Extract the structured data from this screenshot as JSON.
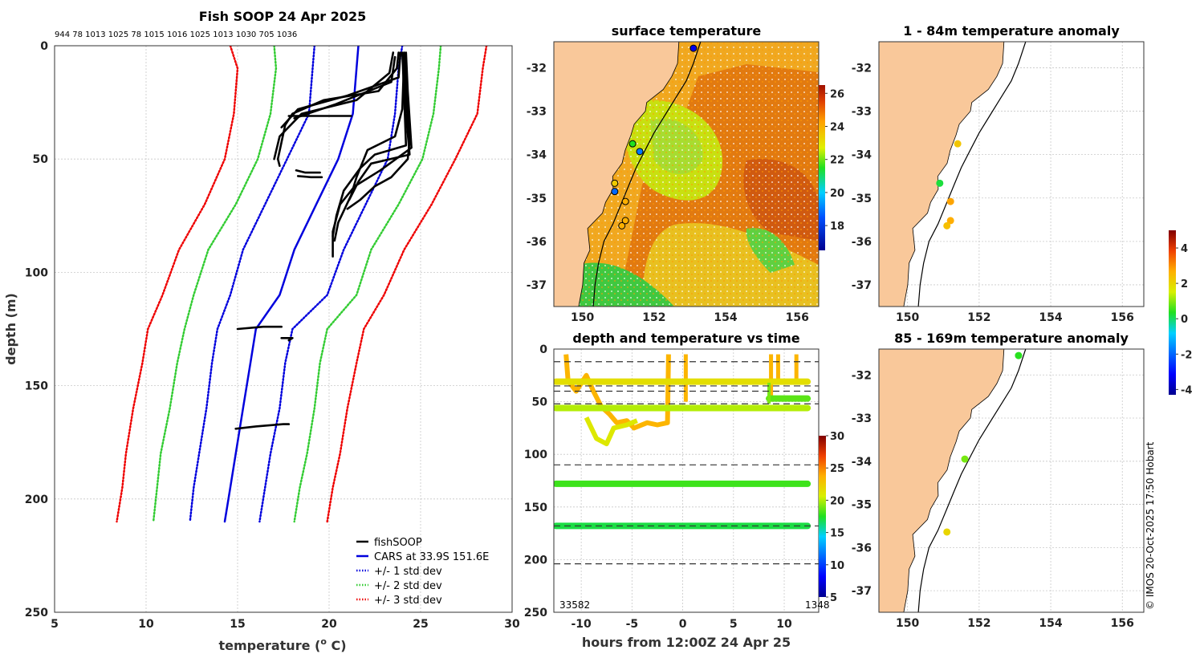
{
  "chart_data": [
    {
      "type": "line",
      "title": "Fish SOOP 24 Apr 2025",
      "subtitle": "944 78 1013 1025 78 1015 1016 1025 1013 1030 705 1036",
      "xlabel": "temperature (°C)",
      "xlabel_main": "temperature (",
      "xlabel_sup": "o",
      "xlabel_tail": " C)",
      "ylabel": "depth (m)",
      "xlim": [
        5,
        30
      ],
      "ylim": [
        250,
        0
      ],
      "xticks": [
        "5",
        "10",
        "15",
        "20",
        "25",
        "30"
      ],
      "yticks": [
        "0",
        "50",
        "100",
        "150",
        "200",
        "250"
      ],
      "legend": [
        "fishSOOP",
        "CARS at 33.9S 151.6E",
        "+/- 1 std dev",
        "+/- 2 std dev",
        "+/- 3 std dev"
      ],
      "legend_position": "bottom-right",
      "series": [
        {
          "name": "CARS at 33.9S 151.6E",
          "color": "#0000dd",
          "style": "solid",
          "points": [
            [
              21.6,
              0
            ],
            [
              21.5,
              10
            ],
            [
              21.3,
              30
            ],
            [
              20.5,
              50
            ],
            [
              19.3,
              70
            ],
            [
              18.1,
              90
            ],
            [
              17.3,
              110
            ],
            [
              16.0,
              125
            ],
            [
              15.7,
              140
            ],
            [
              15.3,
              160
            ],
            [
              14.9,
              180
            ],
            [
              14.6,
              195
            ],
            [
              14.3,
              210
            ]
          ]
        },
        {
          "name": "CARS -1 std",
          "color": "#0000dd",
          "style": "dotted",
          "points": [
            [
              19.2,
              0
            ],
            [
              19.1,
              10
            ],
            [
              18.9,
              30
            ],
            [
              17.7,
              50
            ],
            [
              16.5,
              70
            ],
            [
              15.3,
              90
            ],
            [
              14.6,
              110
            ],
            [
              13.9,
              125
            ],
            [
              13.6,
              140
            ],
            [
              13.3,
              160
            ],
            [
              12.9,
              180
            ],
            [
              12.6,
              195
            ],
            [
              12.4,
              210
            ]
          ]
        },
        {
          "name": "CARS +1 std",
          "color": "#0000dd",
          "style": "dotted",
          "points": [
            [
              24.0,
              0
            ],
            [
              23.8,
              10
            ],
            [
              23.6,
              30
            ],
            [
              23.2,
              50
            ],
            [
              22.0,
              70
            ],
            [
              20.8,
              90
            ],
            [
              19.9,
              110
            ],
            [
              18.0,
              125
            ],
            [
              17.6,
              140
            ],
            [
              17.3,
              160
            ],
            [
              16.8,
              180
            ],
            [
              16.5,
              195
            ],
            [
              16.2,
              210
            ]
          ]
        },
        {
          "name": "CARS -2 std",
          "color": "#33cc33",
          "style": "dotted",
          "points": [
            [
              17.0,
              0
            ],
            [
              17.1,
              10
            ],
            [
              16.8,
              30
            ],
            [
              16.1,
              50
            ],
            [
              14.9,
              70
            ],
            [
              13.4,
              90
            ],
            [
              12.6,
              110
            ],
            [
              12.1,
              125
            ],
            [
              11.7,
              140
            ],
            [
              11.3,
              160
            ],
            [
              10.8,
              180
            ],
            [
              10.6,
              195
            ],
            [
              10.4,
              210
            ]
          ]
        },
        {
          "name": "CARS +2 std",
          "color": "#33cc33",
          "style": "dotted",
          "points": [
            [
              26.1,
              0
            ],
            [
              26.0,
              10
            ],
            [
              25.7,
              30
            ],
            [
              25.1,
              50
            ],
            [
              23.8,
              70
            ],
            [
              22.3,
              90
            ],
            [
              21.5,
              110
            ],
            [
              19.9,
              125
            ],
            [
              19.5,
              140
            ],
            [
              19.2,
              160
            ],
            [
              18.8,
              180
            ],
            [
              18.4,
              195
            ],
            [
              18.1,
              210
            ]
          ]
        },
        {
          "name": "CARS -3 std",
          "color": "#ee0000",
          "style": "dotted",
          "points": [
            [
              14.6,
              0
            ],
            [
              15.0,
              10
            ],
            [
              14.8,
              30
            ],
            [
              14.3,
              50
            ],
            [
              13.2,
              70
            ],
            [
              11.8,
              90
            ],
            [
              10.9,
              110
            ],
            [
              10.1,
              125
            ],
            [
              9.8,
              140
            ],
            [
              9.3,
              160
            ],
            [
              8.9,
              180
            ],
            [
              8.7,
              195
            ],
            [
              8.4,
              210
            ]
          ]
        },
        {
          "name": "CARS +3 std",
          "color": "#ee0000",
          "style": "dotted",
          "points": [
            [
              28.6,
              0
            ],
            [
              28.4,
              10
            ],
            [
              28.1,
              30
            ],
            [
              26.9,
              50
            ],
            [
              25.6,
              70
            ],
            [
              24.1,
              90
            ],
            [
              23.0,
              110
            ],
            [
              21.9,
              125
            ],
            [
              21.5,
              140
            ],
            [
              21.0,
              160
            ],
            [
              20.6,
              180
            ],
            [
              20.2,
              195
            ],
            [
              19.9,
              210
            ]
          ]
        },
        {
          "name": "fishSOOP",
          "color": "#000000",
          "style": "solid",
          "profiles": [
            [
              [
                23.8,
                3
              ],
              [
                23.7,
                10
              ],
              [
                22.7,
                20
              ],
              [
                19.7,
                24
              ],
              [
                18.0,
                30
              ],
              [
                17.6,
                35
              ],
              [
                17.2,
                50
              ],
              [
                17.3,
                53
              ]
            ],
            [
              [
                23.5,
                3
              ],
              [
                23.3,
                12
              ],
              [
                21.5,
                24
              ],
              [
                18.5,
                30
              ],
              [
                17.3,
                40
              ],
              [
                17.0,
                50
              ]
            ],
            [
              [
                23.9,
                3
              ],
              [
                23.8,
                14
              ],
              [
                21.0,
                22
              ],
              [
                18.3,
                28
              ],
              [
                17.4,
                36
              ]
            ],
            [
              [
                23.6,
                5
              ],
              [
                23.4,
                16
              ],
              [
                20.3,
                26
              ],
              [
                18.1,
                32
              ]
            ],
            [
              [
                24.1,
                3
              ],
              [
                24.2,
                10
              ],
              [
                24.3,
                30
              ],
              [
                24.4,
                42
              ],
              [
                24.3,
                50
              ],
              [
                23.4,
                58
              ],
              [
                22.5,
                62
              ],
              [
                21.7,
                68
              ],
              [
                21.0,
                72
              ]
            ],
            [
              [
                24.2,
                3
              ],
              [
                24.3,
                20
              ],
              [
                24.5,
                45
              ],
              [
                22.8,
                55
              ],
              [
                21.4,
                62
              ],
              [
                20.6,
                70
              ],
              [
                20.2,
                82
              ],
              [
                20.2,
                93
              ]
            ],
            [
              [
                24.0,
                3
              ],
              [
                24.1,
                22
              ],
              [
                24.2,
                44
              ],
              [
                22.5,
                48
              ],
              [
                21.7,
                54
              ],
              [
                20.8,
                64
              ],
              [
                20.4,
                75
              ],
              [
                20.2,
                84
              ]
            ],
            [
              [
                24.1,
                5
              ],
              [
                24.0,
                28
              ],
              [
                23.6,
                40
              ],
              [
                22.1,
                46
              ],
              [
                21.5,
                58
              ],
              [
                21.2,
                66
              ],
              [
                20.5,
                78
              ],
              [
                20.3,
                86
              ]
            ],
            [
              [
                24.1,
                3
              ],
              [
                24.2,
                30
              ],
              [
                24.4,
                48
              ],
              [
                22.3,
                52
              ],
              [
                21.6,
                60
              ],
              [
                21.1,
                68
              ]
            ],
            [
              [
                17.8,
                31
              ],
              [
                18.4,
                31
              ],
              [
                19.1,
                31
              ],
              [
                20.2,
                31
              ],
              [
                21.2,
                31
              ]
            ],
            [
              [
                18.2,
                55
              ],
              [
                18.7,
                56
              ],
              [
                19.5,
                56
              ]
            ],
            [
              [
                18.3,
                57.5
              ],
              [
                19.0,
                58
              ],
              [
                19.6,
                58
              ]
            ],
            [
              [
                15.0,
                125
              ],
              [
                16.4,
                124
              ],
              [
                17.4,
                124
              ]
            ],
            [
              [
                17.4,
                129
              ],
              [
                18.0,
                129
              ],
              [
                17.8,
                130
              ]
            ],
            [
              [
                14.9,
                169
              ],
              [
                16.0,
                168
              ],
              [
                17.5,
                167
              ],
              [
                17.8,
                167
              ]
            ]
          ]
        }
      ]
    },
    {
      "type": "heatmap",
      "title": "surface temperature",
      "xticks": [
        "150",
        "152",
        "154",
        "156"
      ],
      "yticks": [
        "-32",
        "-33",
        "-34",
        "-35",
        "-36",
        "-37"
      ],
      "lon_range": [
        149.2,
        156.6
      ],
      "lat_range": [
        -37.5,
        -31.4
      ],
      "colorbar_ticks": [
        "26",
        "24",
        "22",
        "20",
        "18"
      ],
      "colorbar_range": [
        16.5,
        26.5
      ],
      "stations": [
        {
          "lon": 153.1,
          "lat": -31.55,
          "value": 17.5
        },
        {
          "lon": 151.4,
          "lat": -33.75,
          "value": 21.5
        },
        {
          "lon": 151.6,
          "lat": -33.93,
          "value": 19.2
        },
        {
          "lon": 150.9,
          "lat": -34.85,
          "value": 19.0
        },
        {
          "lon": 150.9,
          "lat": -34.66,
          "value": 23.5
        },
        {
          "lon": 151.2,
          "lat": -35.08,
          "value": 24.0
        },
        {
          "lon": 151.2,
          "lat": -35.52,
          "value": 24.0
        },
        {
          "lon": 151.1,
          "lat": -35.64,
          "value": 24.0
        }
      ]
    },
    {
      "type": "scatter",
      "title": "depth and temperature vs time",
      "xlabel": "hours from 12:00Z 24 Apr 25",
      "xticks": [
        "-10",
        "-5",
        "0",
        "5",
        "10"
      ],
      "yticks": [
        "0",
        "50",
        "100",
        "150",
        "200",
        "250"
      ],
      "xlim": [
        -12.7,
        13.4
      ],
      "ylim": [
        250,
        0
      ],
      "corner_labels": [
        "33582",
        "1348"
      ],
      "dashed_depths": [
        12,
        35,
        40,
        52,
        110,
        168,
        204
      ],
      "colorbar_ticks": [
        "30",
        "25",
        "20",
        "15",
        "10",
        "5"
      ],
      "colorbar_range": [
        5,
        30
      ],
      "tracks": [
        {
          "depth": 31,
          "from": -12.5,
          "to": 12.3,
          "temp": 21.5
        },
        {
          "depth": 56,
          "from": -12.5,
          "to": 12.3,
          "temp": 20.0
        },
        {
          "depth": 128,
          "from": -12.5,
          "to": 12.3,
          "temp": 18.0
        },
        {
          "depth": 168,
          "from": -12.5,
          "to": 12.3,
          "temp": 17.0
        },
        {
          "depth": 47,
          "from": 8.5,
          "to": 12.3,
          "temp": 18.5
        }
      ]
    },
    {
      "type": "scatter",
      "title": "1 - 84m temperature anomaly",
      "xticks": [
        "150",
        "152",
        "154",
        "156"
      ],
      "yticks": [
        "-32",
        "-33",
        "-34",
        "-35",
        "-36",
        "-37"
      ],
      "points": [
        {
          "lon": 151.4,
          "lat": -33.75,
          "value": 2.3
        },
        {
          "lon": 150.9,
          "lat": -34.66,
          "value": 0.2
        },
        {
          "lon": 151.2,
          "lat": -35.08,
          "value": 2.8
        },
        {
          "lon": 151.2,
          "lat": -35.52,
          "value": 2.7
        },
        {
          "lon": 151.1,
          "lat": -35.64,
          "value": 2.4
        }
      ]
    },
    {
      "type": "scatter",
      "title": "85 - 169m temperature anomaly",
      "xticks": [
        "150",
        "152",
        "154",
        "156"
      ],
      "yticks": [
        "-32",
        "-33",
        "-34",
        "-35",
        "-36",
        "-37"
      ],
      "points": [
        {
          "lon": 153.1,
          "lat": -31.55,
          "value": 0.4
        },
        {
          "lon": 151.6,
          "lat": -33.95,
          "value": 0.9
        },
        {
          "lon": 151.1,
          "lat": -35.64,
          "value": 2.0
        }
      ],
      "colorbar_ticks": [
        "4",
        "2",
        "0",
        "-2",
        "-4"
      ],
      "colorbar_range": [
        -4.3,
        5.0
      ]
    }
  ],
  "credit": "© IMOS 20-Oct-2025 17:50 Hobart"
}
